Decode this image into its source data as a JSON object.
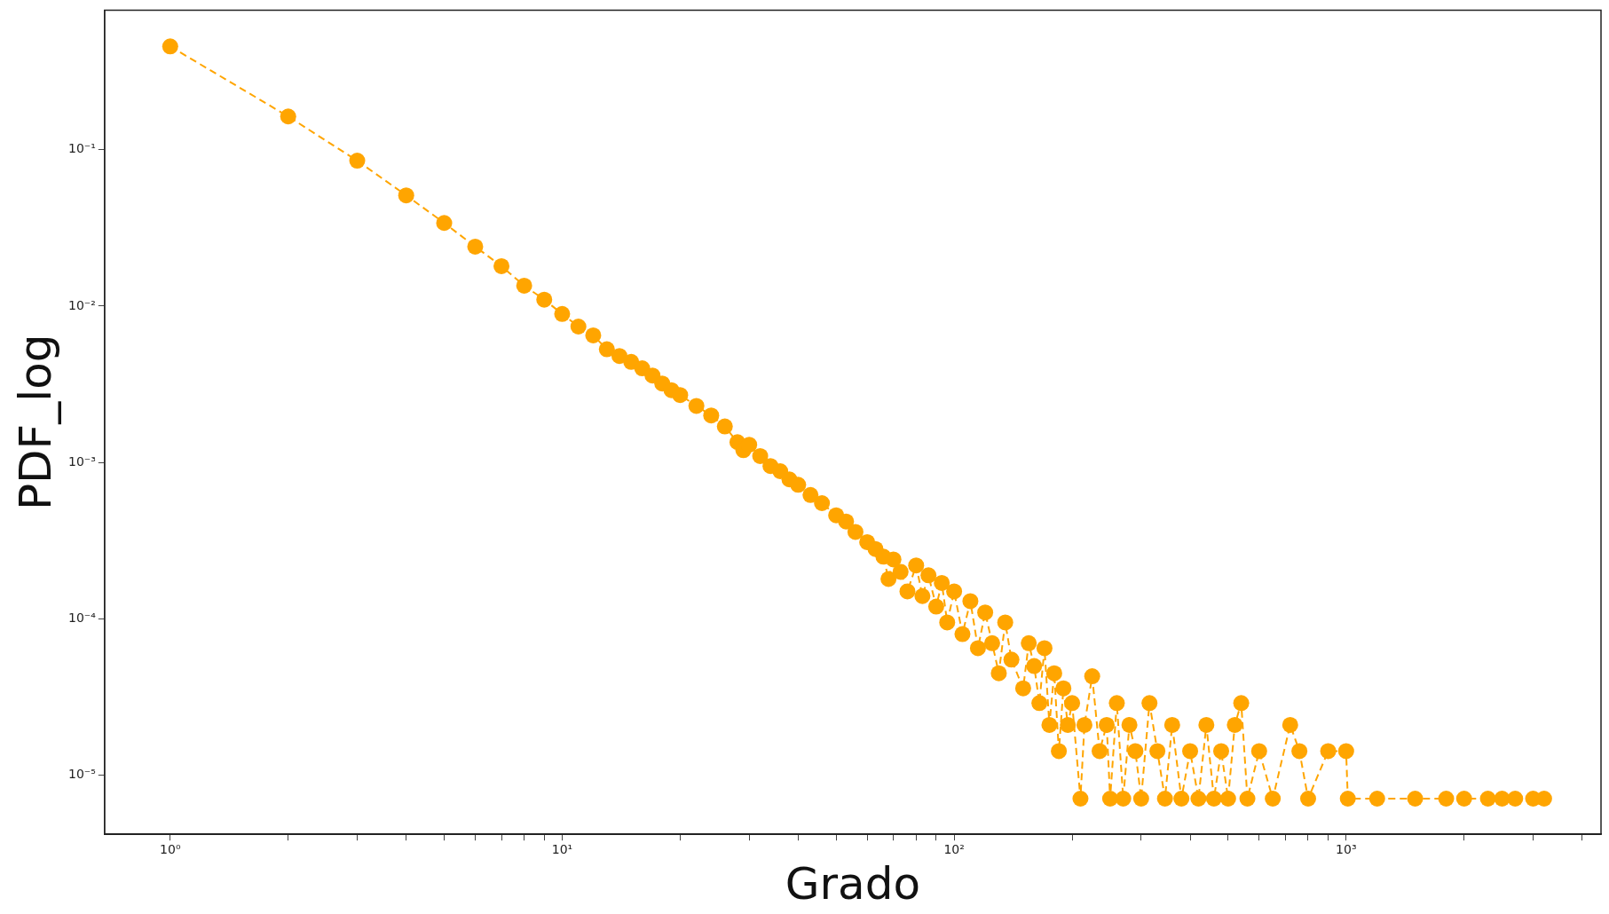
{
  "chart_data": {
    "type": "line",
    "xlabel": "Grado",
    "ylabel": "PDF_log",
    "log": "xy",
    "grid": false,
    "legend": false,
    "marker": "circle",
    "line_style": "dashed",
    "xlim": [
      0.68,
      4470
    ],
    "ylim": [
      4.2e-06,
      0.78
    ],
    "xticks": [
      {
        "value": 1,
        "label": "10⁰"
      },
      {
        "value": 2,
        "label": null
      },
      {
        "value": 3,
        "label": null
      },
      {
        "value": 4,
        "label": null
      },
      {
        "value": 5,
        "label": null
      },
      {
        "value": 6,
        "label": null
      },
      {
        "value": 7,
        "label": null
      },
      {
        "value": 8,
        "label": null
      },
      {
        "value": 9,
        "label": null
      },
      {
        "value": 10,
        "label": "10¹"
      },
      {
        "value": 20,
        "label": null
      },
      {
        "value": 30,
        "label": null
      },
      {
        "value": 40,
        "label": null
      },
      {
        "value": 50,
        "label": null
      },
      {
        "value": 60,
        "label": null
      },
      {
        "value": 70,
        "label": null
      },
      {
        "value": 80,
        "label": null
      },
      {
        "value": 90,
        "label": null
      },
      {
        "value": 100,
        "label": "10²"
      },
      {
        "value": 200,
        "label": null
      },
      {
        "value": 300,
        "label": null
      },
      {
        "value": 400,
        "label": null
      },
      {
        "value": 500,
        "label": null
      },
      {
        "value": 600,
        "label": null
      },
      {
        "value": 700,
        "label": null
      },
      {
        "value": 800,
        "label": null
      },
      {
        "value": 900,
        "label": null
      },
      {
        "value": 1000,
        "label": "10³"
      },
      {
        "value": 2000,
        "label": null
      },
      {
        "value": 3000,
        "label": null
      },
      {
        "value": 4000,
        "label": null
      }
    ],
    "yticks": [
      {
        "value": 1e-05,
        "label": "10⁻⁵"
      },
      {
        "value": 0.0001,
        "label": "10⁻⁴"
      },
      {
        "value": 0.001,
        "label": "10⁻³"
      },
      {
        "value": 0.01,
        "label": "10⁻²"
      },
      {
        "value": 0.1,
        "label": "10⁻¹"
      }
    ],
    "series": [
      {
        "color": "#ffa500",
        "x": [
          1,
          2,
          3,
          4,
          5,
          6,
          7,
          8,
          9,
          10,
          11,
          12,
          13,
          14,
          15,
          16,
          17,
          18,
          19,
          20,
          22,
          24,
          26,
          28,
          29,
          30,
          32,
          34,
          36,
          38,
          40,
          43,
          46,
          50,
          53,
          56,
          60,
          63,
          66,
          68,
          70,
          73,
          76,
          80,
          83,
          86,
          90,
          93,
          96,
          100,
          105,
          110,
          115,
          120,
          125,
          130,
          135,
          140,
          150,
          155,
          160,
          165,
          170,
          175,
          180,
          185,
          190,
          195,
          200,
          210,
          215,
          225,
          235,
          245,
          250,
          260,
          270,
          280,
          290,
          300,
          315,
          330,
          345,
          360,
          380,
          400,
          420,
          440,
          460,
          480,
          500,
          520,
          540,
          560,
          600,
          650,
          720,
          760,
          800,
          900,
          1000,
          1010,
          1200,
          1500,
          1800,
          2000,
          2300,
          2500,
          2700,
          3000,
          3200
        ],
        "values": [
          0.457,
          0.163,
          0.085,
          0.051,
          0.034,
          0.024,
          0.018,
          0.0135,
          0.011,
          0.0089,
          0.0074,
          0.0065,
          0.0053,
          0.0048,
          0.0044,
          0.004,
          0.0036,
          0.0032,
          0.0029,
          0.0027,
          0.0023,
          0.002,
          0.0017,
          0.00135,
          0.0012,
          0.0013,
          0.0011,
          0.00095,
          0.00088,
          0.00078,
          0.00072,
          0.00062,
          0.00055,
          0.00046,
          0.00042,
          0.00036,
          0.00031,
          0.00028,
          0.00025,
          0.00018,
          0.00024,
          0.0002,
          0.00015,
          0.00022,
          0.00014,
          0.00019,
          0.00012,
          0.00017,
          9.5e-05,
          0.00015,
          8e-05,
          0.00013,
          6.5e-05,
          0.00011,
          7e-05,
          4.5e-05,
          9.5e-05,
          5.5e-05,
          3.6e-05,
          7e-05,
          5e-05,
          2.9e-05,
          6.5e-05,
          2.1e-05,
          4.5e-05,
          1.43e-05,
          3.6e-05,
          2.1e-05,
          2.9e-05,
          7.1e-06,
          2.1e-05,
          4.3e-05,
          1.43e-05,
          2.1e-05,
          7.1e-06,
          2.9e-05,
          7.1e-06,
          2.1e-05,
          1.43e-05,
          7.1e-06,
          2.9e-05,
          1.43e-05,
          7.1e-06,
          2.1e-05,
          7.1e-06,
          1.43e-05,
          7.1e-06,
          2.1e-05,
          7.1e-06,
          1.43e-05,
          7.1e-06,
          2.1e-05,
          2.9e-05,
          7.1e-06,
          1.43e-05,
          7.1e-06,
          2.1e-05,
          1.43e-05,
          7.1e-06,
          1.43e-05,
          1.43e-05,
          7.1e-06,
          7.1e-06,
          7.1e-06,
          7.1e-06,
          7.1e-06,
          7.1e-06,
          7.1e-06,
          7.1e-06,
          7.1e-06,
          7.1e-06
        ]
      }
    ]
  }
}
